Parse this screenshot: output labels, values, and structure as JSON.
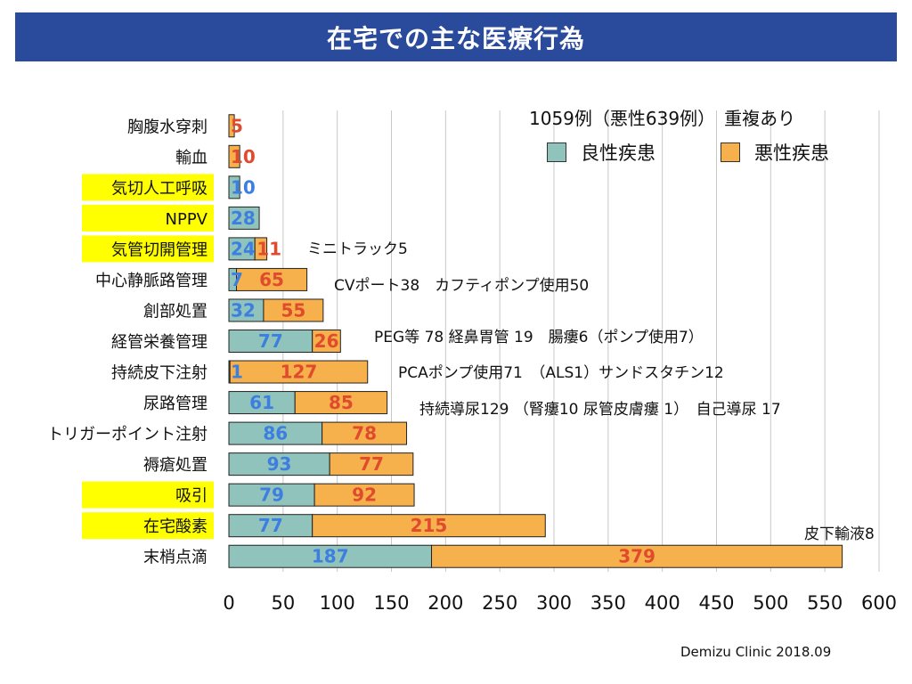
{
  "title": "在宅での主な医療行為",
  "summary_text": "1059例（悪性639例）　重複あり",
  "credit": "Demizu Clinic 2018.09",
  "colors": {
    "benign": "#8fc3bb",
    "malignant": "#f6b04c",
    "benign_label": "#3d7fe0",
    "malignant_label": "#e14b2d",
    "highlight": "#ffff00",
    "grid": "#c8c8c8",
    "title_bg": "#2a4a9c"
  },
  "notes": [
    {
      "id": "tracheostomy",
      "text": "ミニトラック5"
    },
    {
      "id": "cvport",
      "text": "CVポート38　カフティポンプ使用50"
    },
    {
      "id": "tube",
      "text": "PEG等 78 経鼻胃管 19　腸瘻6（ポンプ使用7）"
    },
    {
      "id": "subq",
      "text": "PCAポンプ使用71　（ALS1）サンドスタチン12"
    },
    {
      "id": "urinary",
      "text": "持続導尿129 （腎瘻10 尿管皮膚瘻 1）　自己導尿 17"
    },
    {
      "id": "drip",
      "text": "皮下輸液8"
    }
  ],
  "chart_data": {
    "type": "bar",
    "orientation": "horizontal",
    "stacked": true,
    "categories": [
      "胸腹水穿刺",
      "輸血",
      "気切人工呼吸",
      "NPPV",
      "気管切開管理",
      "中心静脈路管理",
      "創部処置",
      "経管栄養管理",
      "持続皮下注射",
      "尿路管理",
      "トリガーポイント注射",
      "褥瘡処置",
      "吸引",
      "在宅酸素",
      "末梢点滴"
    ],
    "highlighted": [
      "気切人工呼吸",
      "NPPV",
      "気管切開管理",
      "吸引",
      "在宅酸素"
    ],
    "series": [
      {
        "name": "良性疾患",
        "values": [
          0,
          0,
          10,
          28,
          24,
          7,
          32,
          77,
          1,
          61,
          86,
          93,
          79,
          77,
          187
        ]
      },
      {
        "name": "悪性疾患",
        "values": [
          5,
          10,
          0,
          0,
          11,
          65,
          55,
          26,
          127,
          85,
          78,
          77,
          92,
          215,
          379
        ]
      }
    ],
    "xlim": [
      0,
      600
    ],
    "xticks": [
      0,
      50,
      100,
      150,
      200,
      250,
      300,
      350,
      400,
      450,
      500,
      550,
      600
    ],
    "grid": "vertical",
    "legend_position": "top-right"
  }
}
